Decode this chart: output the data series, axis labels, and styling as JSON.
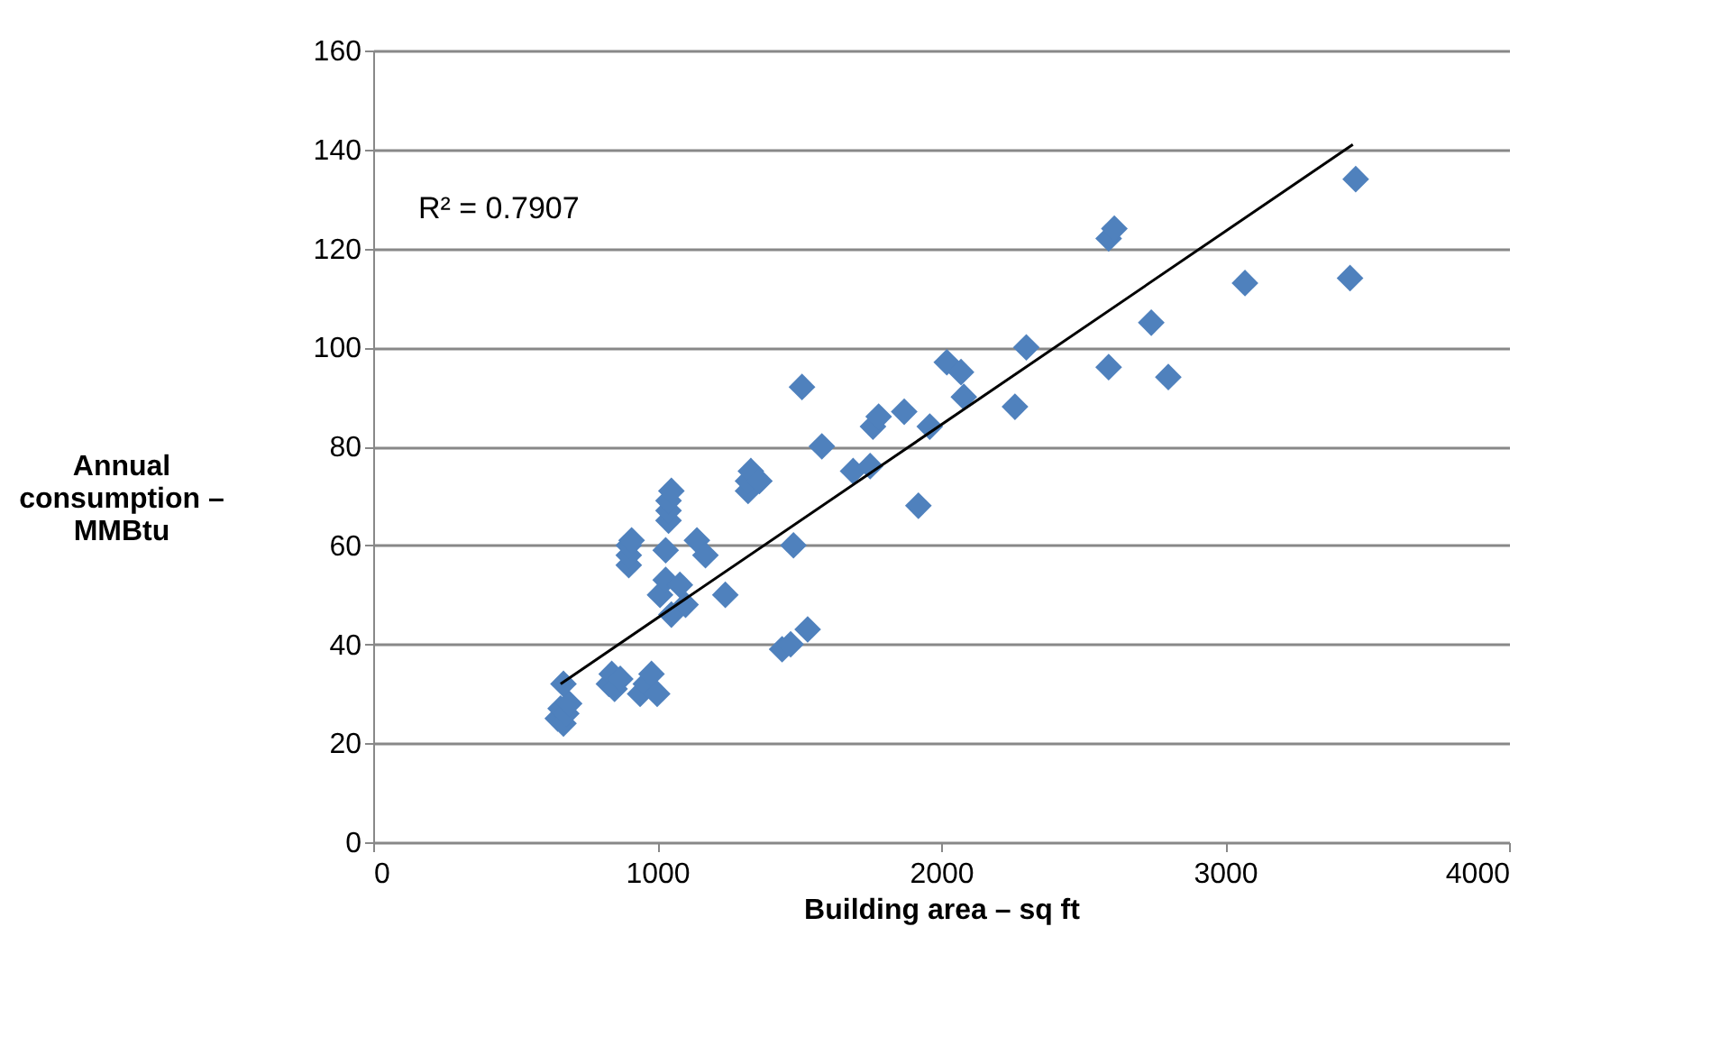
{
  "chart_data": {
    "type": "scatter",
    "xlabel": "Building area – sq ft",
    "ylabel": "Annual\nconsumption –\nMMBtu",
    "annotations": [
      "R² = 0.7907"
    ],
    "xlim": [
      0,
      4000
    ],
    "xticks": [
      0,
      1000,
      2000,
      3000,
      4000
    ],
    "ylim": [
      0,
      160
    ],
    "yticks": [
      0,
      20,
      40,
      60,
      80,
      100,
      120,
      140,
      160
    ],
    "grid": "y",
    "marker": "diamond",
    "series": [
      {
        "color": "#4f81bd",
        "x": [
          650,
          660,
          670,
          680,
          690,
          670,
          830,
          840,
          850,
          870,
          940,
          960,
          980,
          1000,
          900,
          900,
          900,
          910,
          1030,
          1040,
          1040,
          1040,
          1050,
          1010,
          1030,
          1050,
          1080,
          1100,
          1140,
          1170,
          1240,
          1320,
          1320,
          1330,
          1360,
          1440,
          1470,
          1480,
          1530,
          1510,
          1580,
          1690,
          1750,
          1760,
          1780,
          1870,
          1920,
          1960,
          2020,
          2070,
          2080,
          2260,
          2300,
          2590,
          2590,
          2610,
          2740,
          2800,
          3070,
          3440,
          3460
        ],
        "values": [
          25,
          27,
          24,
          26,
          28,
          32,
          32,
          34,
          31,
          33,
          30,
          32,
          34,
          30,
          56,
          58,
          60,
          61,
          59,
          65,
          67,
          69,
          71,
          50,
          53,
          46,
          52,
          48,
          61,
          58,
          50,
          71,
          73,
          75,
          73,
          39,
          40,
          60,
          43,
          92,
          80,
          75,
          76,
          84,
          86,
          87,
          68,
          84,
          97,
          95,
          90,
          88,
          100,
          96,
          122,
          124,
          105,
          94,
          113,
          114,
          134
        ]
      },
      {
        "color": "#000000",
        "type": "line",
        "marker": "none",
        "x": [
          660,
          3450
        ],
        "values": [
          32,
          141
        ]
      }
    ]
  }
}
